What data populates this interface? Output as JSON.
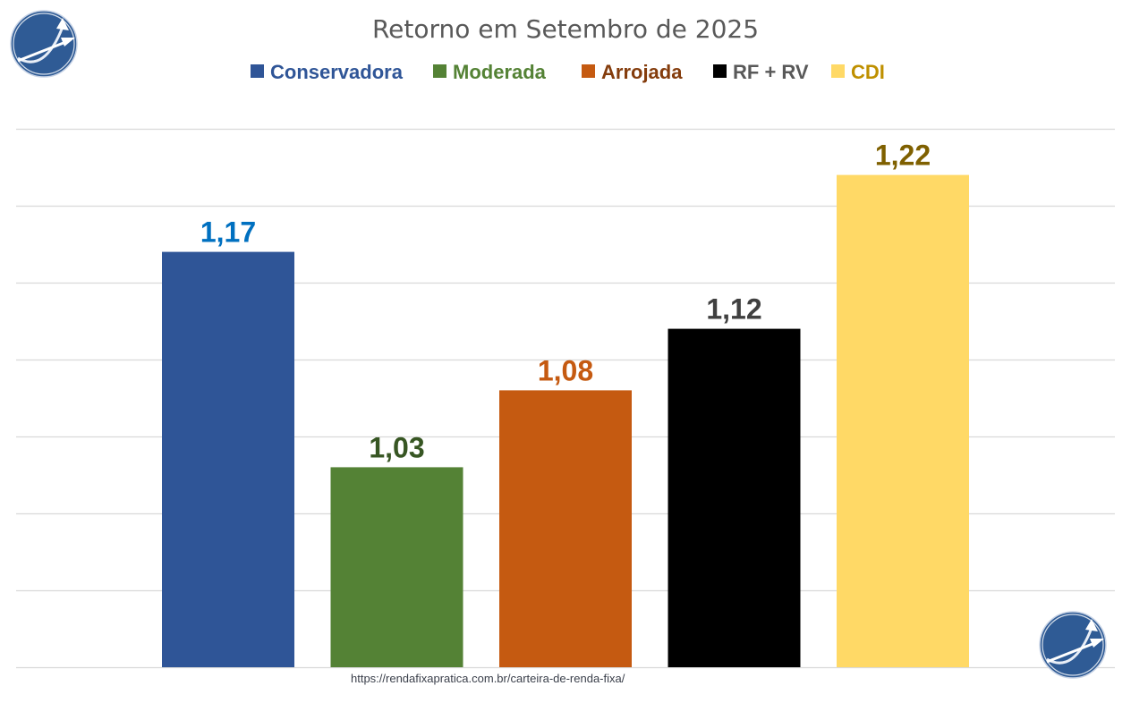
{
  "chart_data": {
    "type": "bar",
    "title": "Retorno em Setembro de 2025",
    "categories": [
      "Conservadora",
      "Moderada",
      "Arrojada",
      "RF + RV",
      "CDI"
    ],
    "values": [
      1.17,
      1.03,
      1.08,
      1.12,
      1.22
    ],
    "data_labels": [
      "1,17",
      "1,03",
      "1,08",
      "1,12",
      "1,22"
    ],
    "xlabel": "",
    "ylabel": "",
    "ylim": [
      0.9,
      1.25
    ],
    "ytick_step": 0.05,
    "ytick_labels_visible": false,
    "grid": true,
    "legend": {
      "placement": "top-center",
      "entries": [
        "Conservadora",
        "Moderada",
        "Arrojada",
        "RF + RV",
        "CDI"
      ]
    },
    "colors": {
      "bars": [
        "#2f5597",
        "#548235",
        "#c55a11",
        "#000000",
        "#ffd966"
      ],
      "labels": [
        "#0070c0",
        "#375623",
        "#c55a11",
        "#404040",
        "#7f6000"
      ],
      "legend_text": [
        "#2f5597",
        "#548235",
        "#843c0c",
        "#595959",
        "#bf9000"
      ]
    }
  },
  "footer": {
    "source_url": "https://rendafixapratica.com.br/carteira-de-renda-fixa/"
  },
  "logos": {
    "icon": "growth-arrows-logo-icon",
    "color": "#2f5b95"
  }
}
